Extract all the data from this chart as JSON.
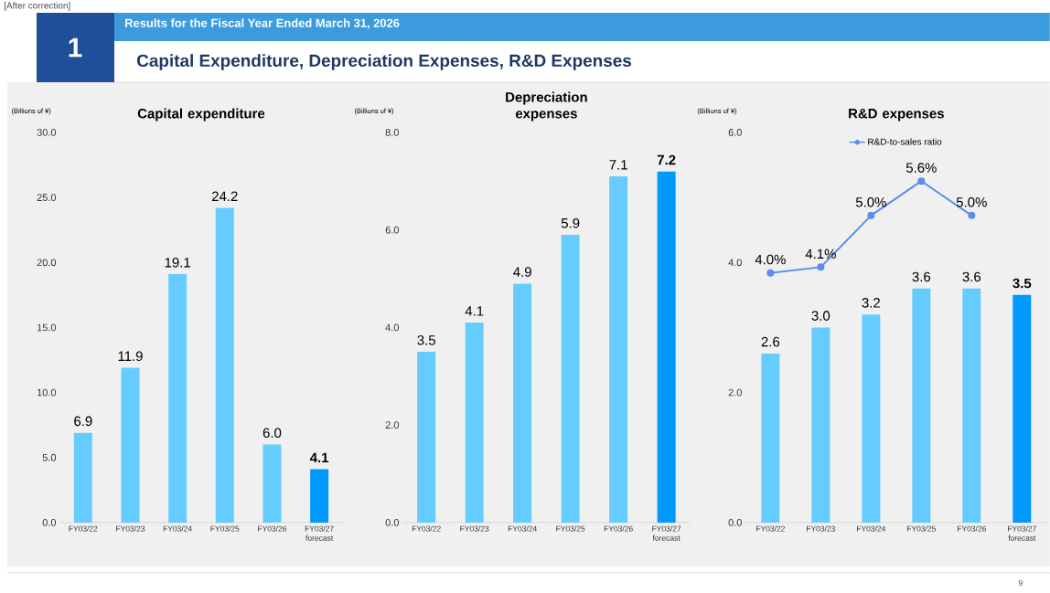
{
  "chart_data": [
    {
      "type": "bar",
      "title": "Capital expenditure",
      "ylabel": "(Billions of ¥)",
      "annotations": [
        "[After correction]",
        "Results for the Fiscal Year Ended March 31, 2026",
        "1",
        "Capital Expenditure, Depreciation Expenses, R&D Expenses",
        "9"
      ],
      "categories": [
        "FY03/22",
        "FY03/23",
        "FY03/24",
        "FY03/25",
        "FY03/26",
        "FY03/27 forecast"
      ],
      "values": [
        6.9,
        11.9,
        19.1,
        24.2,
        6.0,
        4.1
      ],
      "value_labels": [
        "6.9",
        "11.9",
        "19.1",
        "24.2",
        "6.0",
        "4.1"
      ],
      "colors": [
        "#66ccff",
        "#66ccff",
        "#66ccff",
        "#66ccff",
        "#66ccff",
        "#0099ff"
      ],
      "ylim": [
        0,
        30
      ],
      "yticks": [
        {
          "value": 0,
          "label": "0.0"
        },
        {
          "value": 5,
          "label": "5.0"
        },
        {
          "value": 10,
          "label": "10.0"
        },
        {
          "value": 15,
          "label": "15.0"
        },
        {
          "value": 20,
          "label": "20.0"
        },
        {
          "value": 25,
          "label": "25.0"
        },
        {
          "value": 30,
          "label": "30.0"
        }
      ],
      "grid": false
    },
    {
      "type": "bar",
      "title": "Depreciation expenses",
      "ylabel": "(Billions of ¥)",
      "categories": [
        "FY03/22",
        "FY03/23",
        "FY03/24",
        "FY03/25",
        "FY03/26",
        "FY03/27 forecast"
      ],
      "values": [
        3.5,
        4.1,
        4.9,
        5.9,
        7.1,
        7.2
      ],
      "value_labels": [
        "3.5",
        "4.1",
        "4.9",
        "5.9",
        "7.1",
        "7.2"
      ],
      "colors": [
        "#66ccff",
        "#66ccff",
        "#66ccff",
        "#66ccff",
        "#66ccff",
        "#0099ff"
      ],
      "ylim": [
        0,
        8
      ],
      "yticks": [
        {
          "value": 0,
          "label": "0.0"
        },
        {
          "value": 2,
          "label": "2.0"
        },
        {
          "value": 4,
          "label": "4.0"
        },
        {
          "value": 6,
          "label": "6.0"
        },
        {
          "value": 8,
          "label": "8.0"
        }
      ],
      "grid": false
    },
    {
      "type": "bar",
      "title": "R&D expenses",
      "ylabel": "(Billions of ¥)",
      "categories": [
        "FY03/22",
        "FY03/23",
        "FY03/24",
        "FY03/25",
        "FY03/26",
        "FY03/27 forecast"
      ],
      "series": [
        {
          "type": "bar",
          "colors": [
            "#66ccff",
            "#66ccff",
            "#66ccff",
            "#66ccff",
            "#66ccff",
            "#0099ff"
          ],
          "values": [
            2.6,
            3.0,
            3.2,
            3.6,
            3.6,
            3.5
          ],
          "value_labels": [
            "2.6",
            "3.0",
            "3.2",
            "3.6",
            "3.6",
            "3.5"
          ]
        },
        {
          "type": "line",
          "name": "R&D-to-sales ratio",
          "color": "#5b8def",
          "axis": "y2",
          "values": [
            4.0,
            4.1,
            5.0,
            5.6,
            5.0,
            null
          ],
          "value_labels": [
            "4.0%",
            "4.1%",
            "5.0%",
            "5.6%",
            "5.0%",
            null
          ]
        }
      ],
      "ylim": [
        0,
        6
      ],
      "yticks": [
        {
          "value": 0,
          "label": "0.0"
        },
        {
          "value": 2,
          "label": "2.0"
        },
        {
          "value": 4,
          "label": "4.0"
        },
        {
          "value": 6,
          "label": "6.0"
        }
      ],
      "legend": "top",
      "marker": "circle",
      "line_style": "solid"
    }
  ]
}
